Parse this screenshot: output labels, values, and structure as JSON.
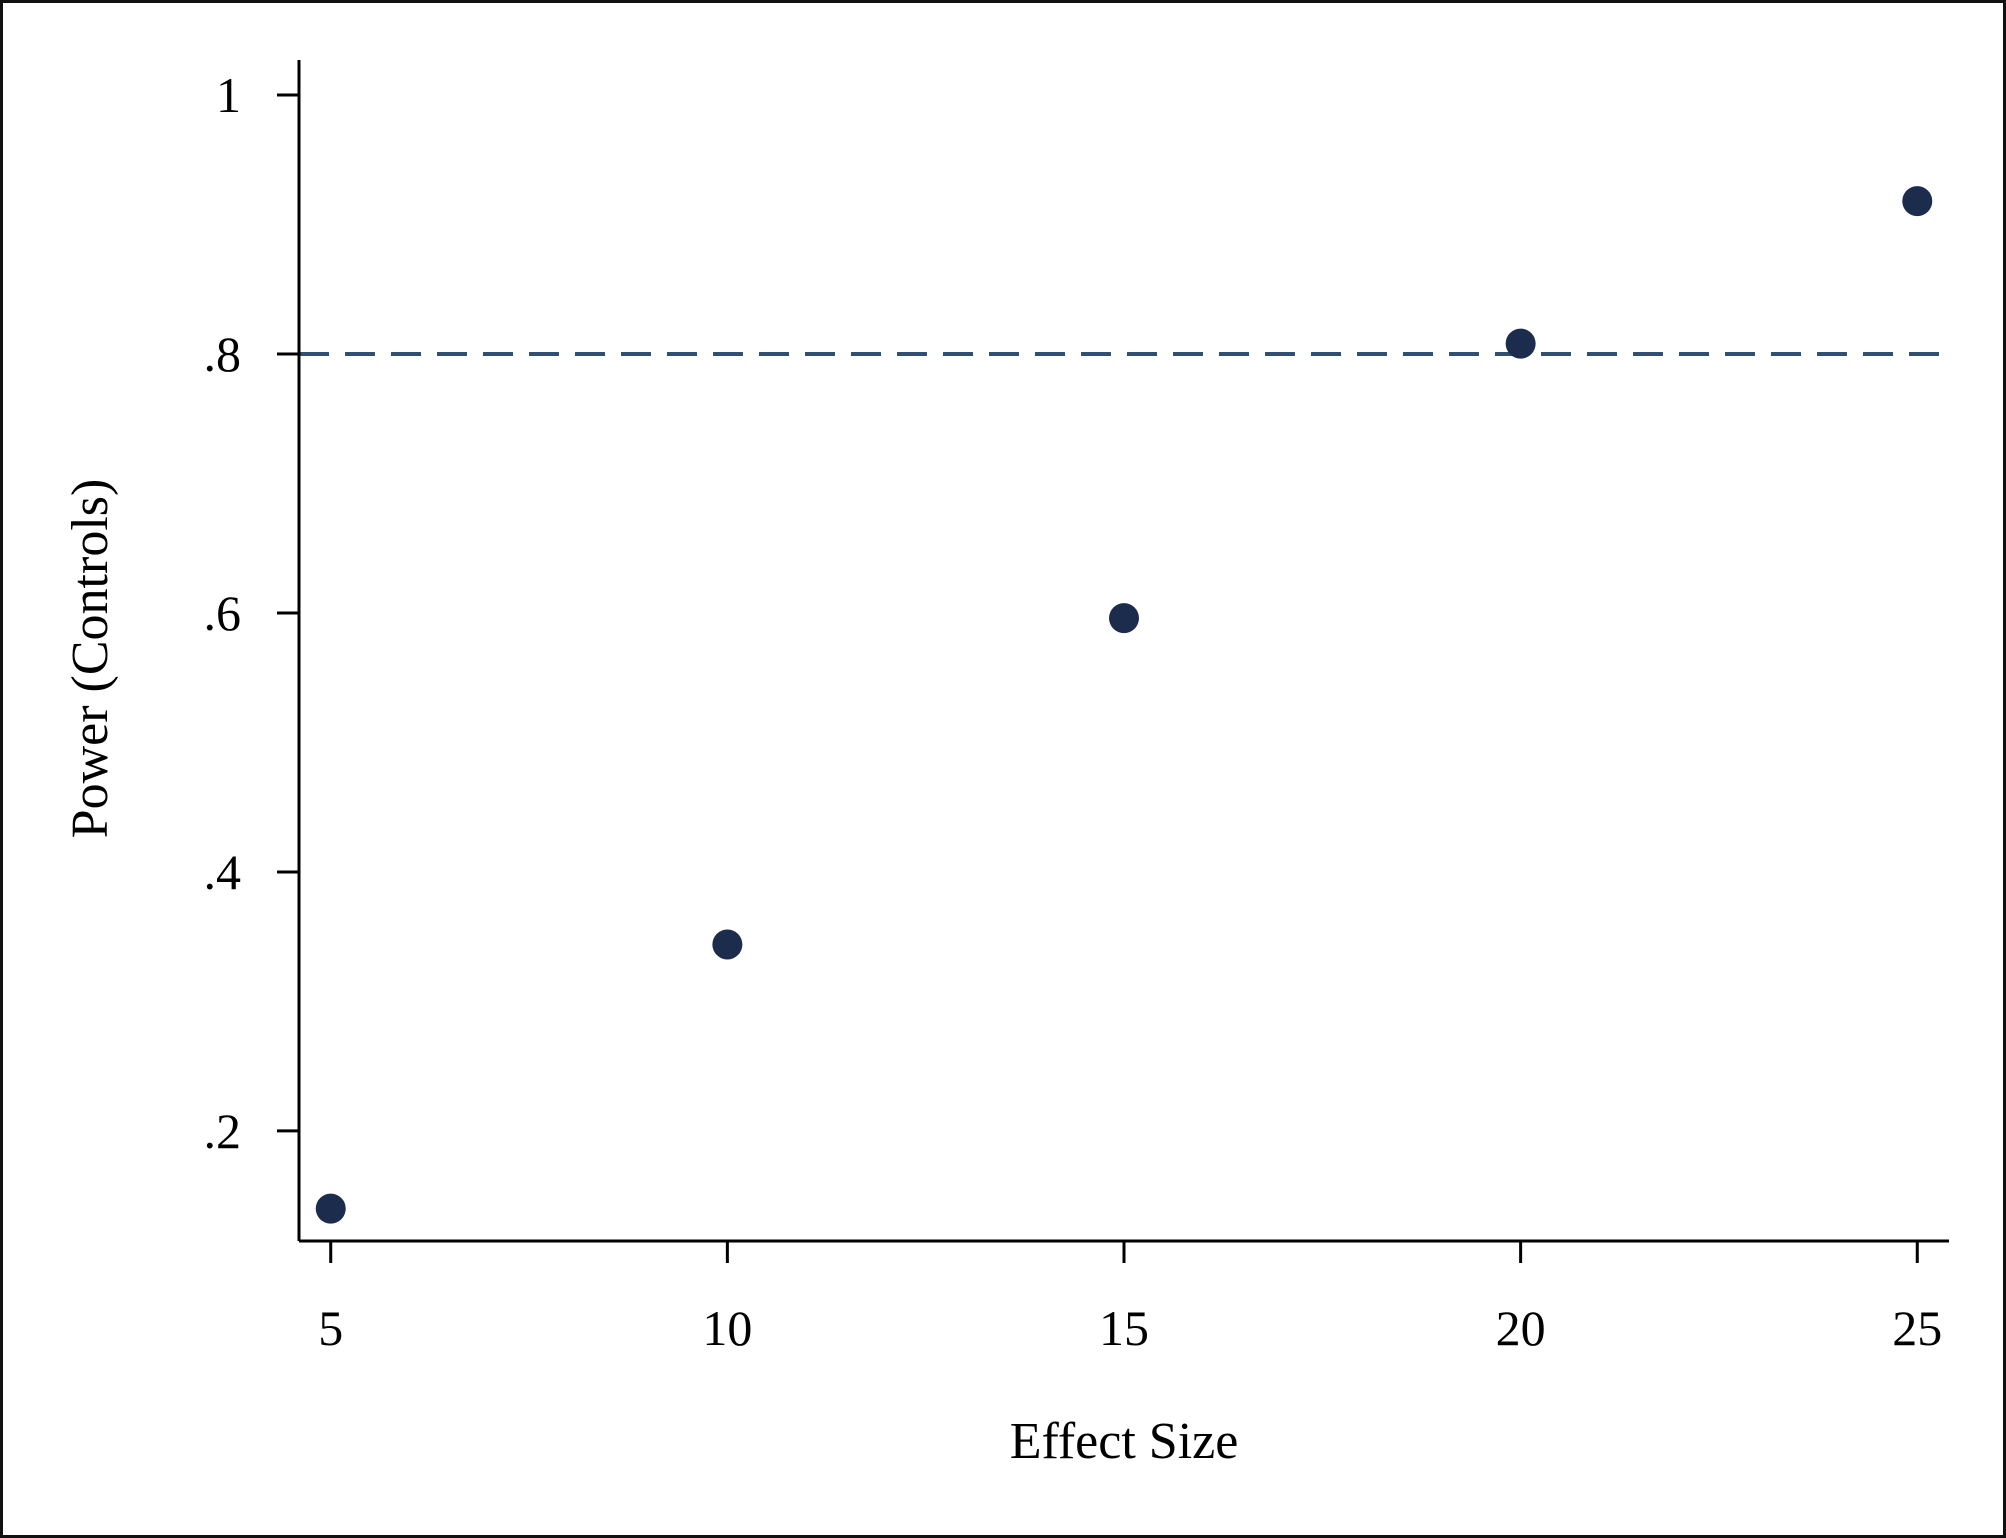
{
  "chart_data": {
    "type": "scatter",
    "title": "",
    "xlabel": "Effect Size",
    "ylabel": "Power (Controls)",
    "x": [
      5,
      10,
      15,
      20,
      25
    ],
    "series": [
      {
        "values": [
          0.14,
          0.344,
          0.596,
          0.808,
          0.918
        ],
        "color": "#1c2c4c"
      }
    ],
    "xlim": [
      4.6,
      25.4
    ],
    "ylim": [
      0.115,
      1.027
    ],
    "xticks": [
      {
        "value": 5,
        "label": "5"
      },
      {
        "value": 10,
        "label": "10"
      },
      {
        "value": 15,
        "label": "15"
      },
      {
        "value": 20,
        "label": "20"
      },
      {
        "value": 25,
        "label": "25"
      }
    ],
    "yticks": [
      {
        "value": 0.2,
        "label": ".2"
      },
      {
        "value": 0.4,
        "label": ".4"
      },
      {
        "value": 0.6,
        "label": ".6"
      },
      {
        "value": 0.8,
        "label": ".8"
      },
      {
        "value": 1.0,
        "label": "1"
      }
    ],
    "reference_line": {
      "y": 0.8,
      "style": "dashed",
      "color": "#2f4f75"
    },
    "grid": false,
    "legend": "none"
  }
}
